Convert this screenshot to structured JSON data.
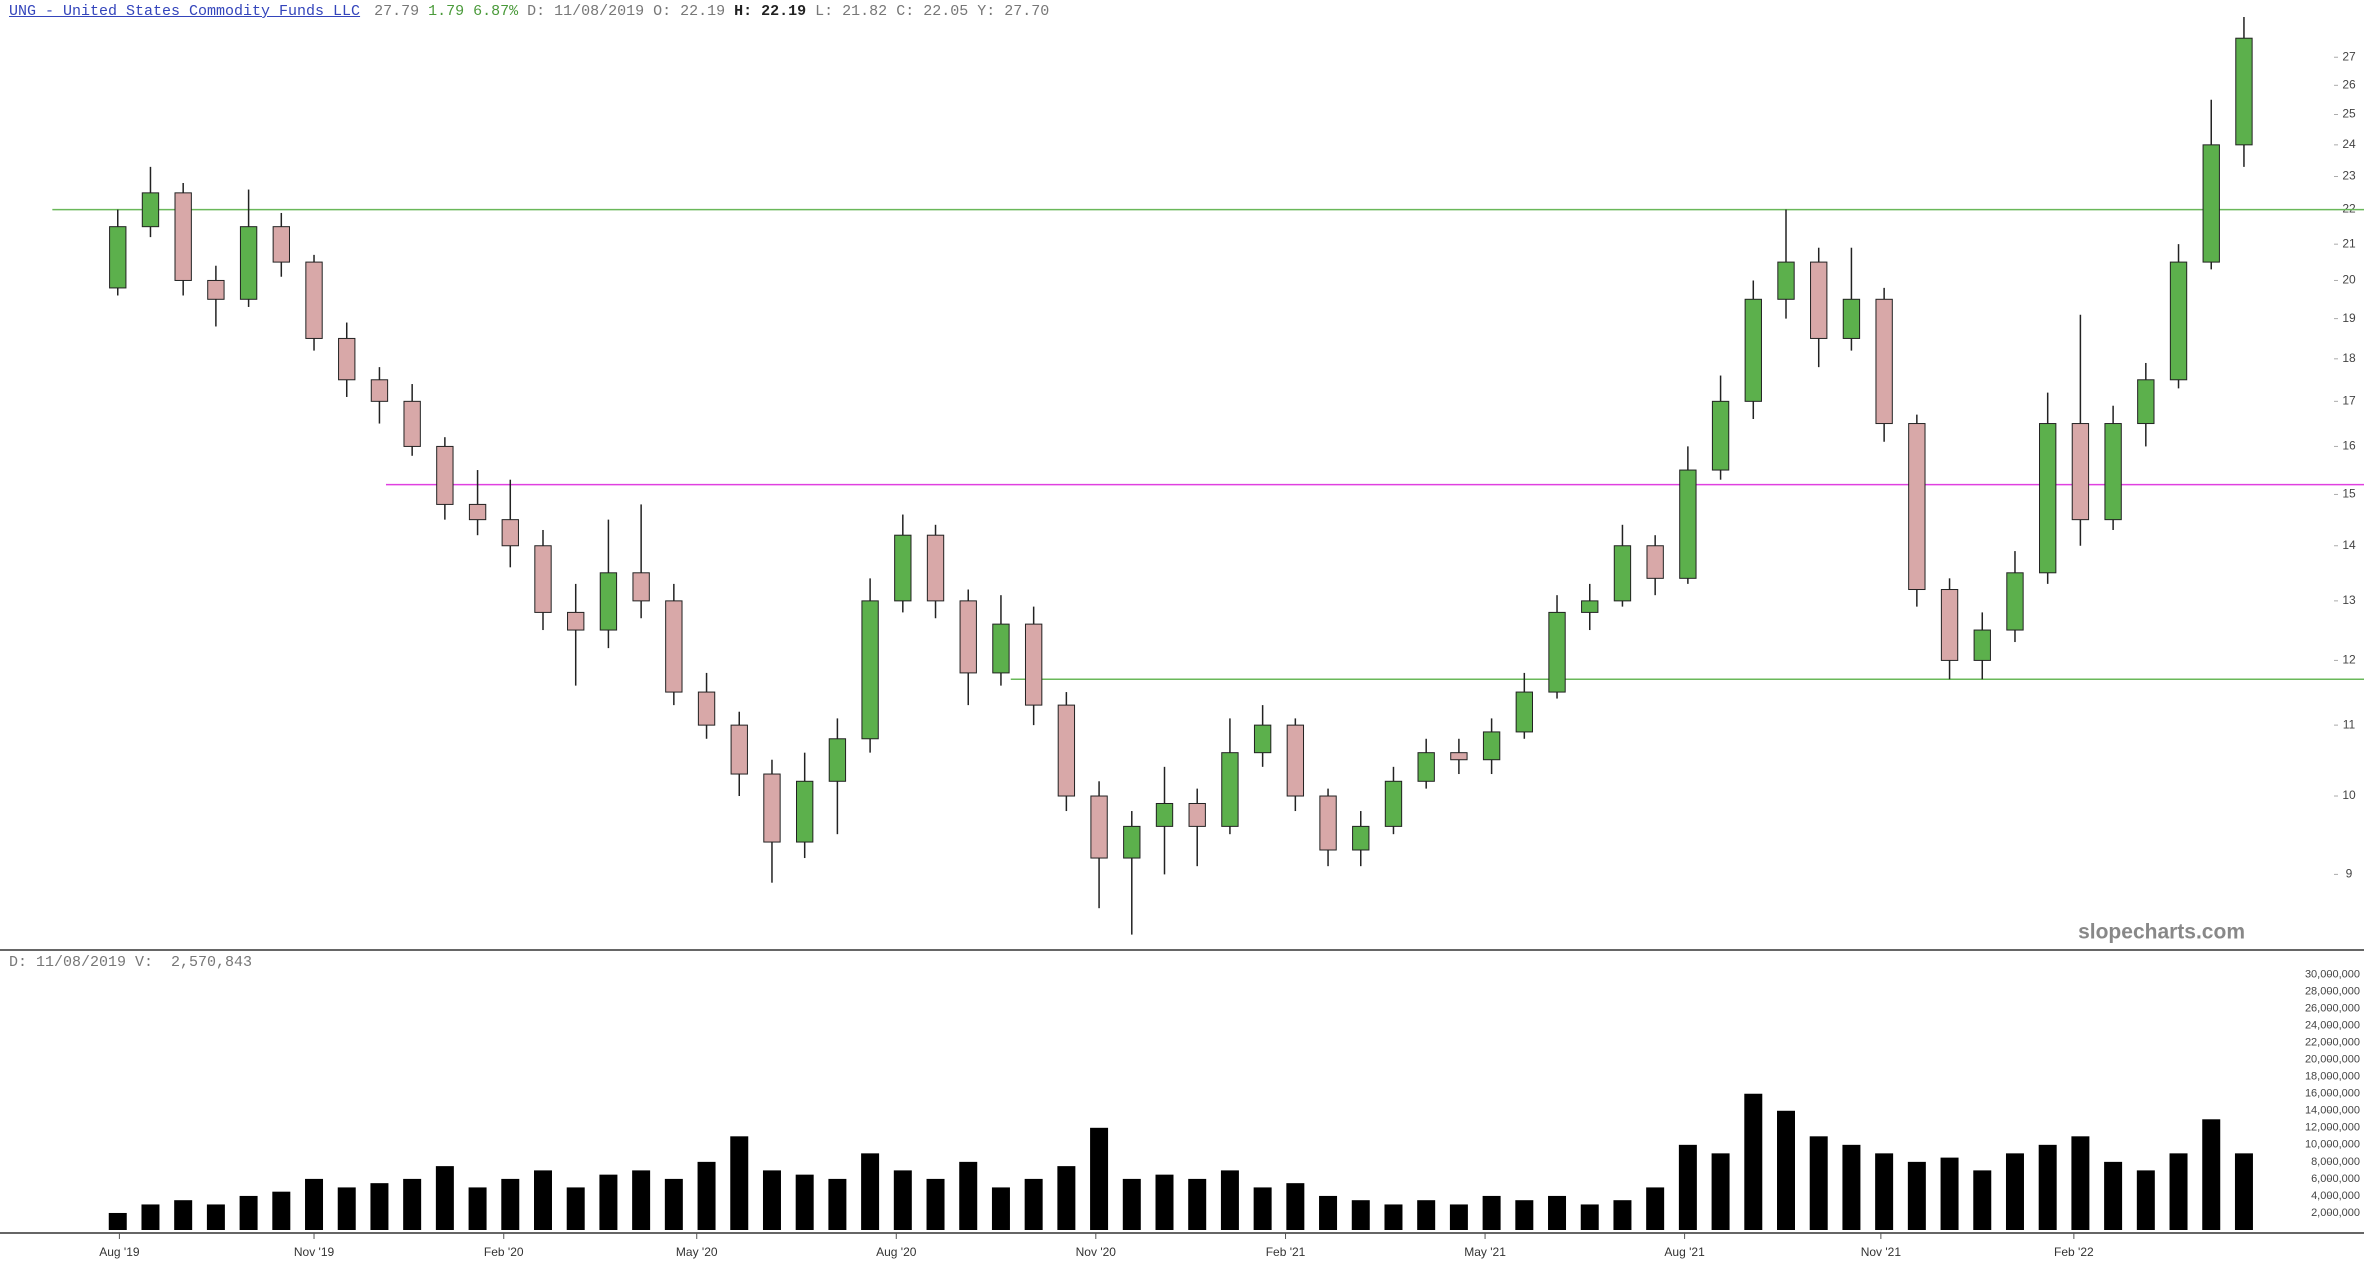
{
  "header": {
    "symbol_name": "UNG - United States Commodity Funds LLC",
    "last": "27.79",
    "change": "1.79",
    "change_pct": "6.87%",
    "date": "D: 11/08/2019",
    "open": "O: 22.19",
    "high": "H: 22.19",
    "low": "L: 21.82",
    "close": "C: 22.05",
    "y": "Y: 27.70"
  },
  "chart_data": [
    {
      "type": "candlestick",
      "log_scale": true,
      "up_color": "#5cb04c",
      "down_color": "#d8a8a8",
      "open": [
        19.8,
        21.5,
        22.5,
        20.0,
        19.5,
        21.5,
        20.5,
        18.5,
        17.5,
        17.0,
        16.0,
        14.8,
        14.5,
        14.0,
        12.8,
        12.5,
        13.5,
        13.0,
        11.5,
        11.0,
        10.3,
        9.4,
        10.2,
        10.8,
        13.0,
        14.2,
        13.0,
        11.8,
        12.6,
        11.3,
        10.0,
        9.2,
        9.6,
        9.9,
        9.6,
        10.6,
        11.0,
        10.0,
        9.3,
        9.6,
        10.2,
        10.6,
        10.5,
        10.9,
        11.5,
        12.8,
        13.0,
        14.0,
        13.4,
        15.5,
        17.0,
        19.5,
        20.5,
        18.5,
        19.5,
        16.5,
        13.2,
        12.0,
        12.5,
        13.5,
        16.5,
        14.5,
        16.5,
        17.5,
        20.5,
        24.0
      ],
      "high": [
        22.0,
        23.3,
        22.8,
        20.4,
        22.6,
        21.9,
        20.7,
        18.9,
        17.8,
        17.4,
        16.2,
        15.5,
        15.3,
        14.3,
        13.3,
        14.5,
        14.8,
        13.3,
        11.8,
        11.2,
        10.5,
        10.6,
        11.1,
        13.4,
        14.6,
        14.4,
        13.2,
        13.1,
        12.9,
        11.5,
        10.2,
        9.8,
        10.4,
        10.1,
        11.1,
        11.3,
        11.1,
        10.1,
        9.8,
        10.4,
        10.8,
        10.8,
        11.1,
        11.8,
        13.1,
        13.3,
        14.4,
        14.2,
        16.0,
        17.6,
        20.0,
        22.0,
        20.9,
        20.9,
        19.8,
        16.7,
        13.4,
        12.8,
        13.9,
        17.2,
        19.1,
        16.9,
        17.9,
        21.0,
        25.5,
        28.5
      ],
      "low": [
        19.6,
        21.2,
        19.6,
        18.8,
        19.3,
        20.1,
        18.2,
        17.1,
        16.5,
        15.8,
        14.5,
        14.2,
        13.6,
        12.5,
        11.6,
        12.2,
        12.7,
        11.3,
        10.8,
        10.0,
        8.9,
        9.2,
        9.5,
        10.6,
        12.8,
        12.7,
        11.3,
        11.6,
        11.0,
        9.8,
        8.6,
        8.3,
        9.0,
        9.1,
        9.5,
        10.4,
        9.8,
        9.1,
        9.1,
        9.5,
        10.1,
        10.3,
        10.3,
        10.8,
        11.4,
        12.5,
        12.9,
        13.1,
        13.3,
        15.3,
        16.6,
        19.0,
        17.8,
        18.2,
        16.1,
        12.9,
        11.7,
        11.7,
        12.3,
        13.3,
        14.0,
        14.3,
        16.0,
        17.3,
        20.3,
        23.3
      ],
      "close": [
        21.5,
        22.5,
        20.0,
        19.5,
        21.5,
        20.5,
        18.5,
        17.5,
        17.0,
        16.0,
        14.8,
        14.5,
        14.0,
        12.8,
        12.5,
        13.5,
        13.0,
        11.5,
        11.0,
        10.3,
        9.4,
        10.2,
        10.8,
        13.0,
        14.2,
        13.0,
        11.8,
        12.6,
        11.3,
        10.0,
        9.2,
        9.6,
        9.9,
        9.6,
        10.6,
        11.0,
        10.0,
        9.3,
        9.6,
        10.2,
        10.6,
        10.5,
        10.9,
        11.5,
        12.8,
        13.0,
        14.0,
        13.4,
        15.5,
        17.0,
        19.5,
        20.5,
        18.5,
        19.5,
        16.5,
        13.2,
        12.0,
        12.5,
        13.5,
        16.5,
        14.5,
        16.5,
        17.5,
        20.5,
        24.0,
        27.7
      ],
      "xlim": [
        -3.6,
        67.6
      ],
      "ylim": [
        8.13,
        29.16
      ],
      "yticks": [
        9,
        10,
        11,
        12,
        13,
        14,
        15,
        16,
        17,
        18,
        19,
        20,
        21,
        22,
        23,
        24,
        25,
        26,
        27
      ],
      "levels": [
        {
          "value": 22.0,
          "from": -2.0,
          "color": "#6ab85a"
        },
        {
          "value": 15.2,
          "from": 8.2,
          "color": "#e040e0"
        },
        {
          "value": 11.7,
          "from": 27.3,
          "color": "#6ab85a"
        }
      ],
      "watermark": "slopecharts.com"
    },
    {
      "type": "bar",
      "info": "D: 11/08/2019 V:  2,570,843",
      "color": "#000000",
      "values": [
        2000000,
        3000000,
        3500000,
        3000000,
        4000000,
        4500000,
        6000000,
        5000000,
        5500000,
        6000000,
        7500000,
        5000000,
        6000000,
        7000000,
        5000000,
        6500000,
        7000000,
        6000000,
        8000000,
        11000000,
        7000000,
        6500000,
        6000000,
        9000000,
        7000000,
        6000000,
        8000000,
        5000000,
        6000000,
        7500000,
        12000000,
        6000000,
        6500000,
        6000000,
        7000000,
        5000000,
        5500000,
        4000000,
        3500000,
        3000000,
        3500000,
        3000000,
        4000000,
        3500000,
        4000000,
        3000000,
        3500000,
        5000000,
        10000000,
        9000000,
        16000000,
        14000000,
        11000000,
        10000000,
        9000000,
        8000000,
        8500000,
        7000000,
        9000000,
        10000000,
        11000000,
        8000000,
        7000000,
        9000000,
        13000000,
        9000000
      ],
      "xlim": [
        -3.6,
        67.6
      ],
      "ylim": [
        0,
        31000000
      ],
      "yticks": [
        {
          "value": 2000000,
          "label": "2,000,000"
        },
        {
          "value": 4000000,
          "label": "4,000,000"
        },
        {
          "value": 6000000,
          "label": "6,000,000"
        },
        {
          "value": 8000000,
          "label": "8,000,000"
        },
        {
          "value": 10000000,
          "label": "10,000,000"
        },
        {
          "value": 12000000,
          "label": "12,000,000"
        },
        {
          "value": 14000000,
          "label": "14,000,000"
        },
        {
          "value": 16000000,
          "label": "16,000,000"
        },
        {
          "value": 18000000,
          "label": "18,000,000"
        },
        {
          "value": 20000000,
          "label": "20,000,000"
        },
        {
          "value": 22000000,
          "label": "22,000,000"
        },
        {
          "value": 24000000,
          "label": "24,000,000"
        },
        {
          "value": 26000000,
          "label": "26,000,000"
        },
        {
          "value": 28000000,
          "label": "28,000,000"
        },
        {
          "value": 30000000,
          "label": "30,000,000"
        }
      ],
      "xticks": [
        {
          "value": 0.05,
          "label": "Aug '19"
        },
        {
          "value": 6.0,
          "label": "Nov '19"
        },
        {
          "value": 11.8,
          "label": "Feb '20"
        },
        {
          "value": 17.7,
          "label": "May '20"
        },
        {
          "value": 23.8,
          "label": "Aug '20"
        },
        {
          "value": 29.9,
          "label": "Nov '20"
        },
        {
          "value": 35.7,
          "label": "Feb '21"
        },
        {
          "value": 41.8,
          "label": "May '21"
        },
        {
          "value": 47.9,
          "label": "Aug '21"
        },
        {
          "value": 53.9,
          "label": "Nov '21"
        },
        {
          "value": 59.8,
          "label": "Feb '22"
        }
      ]
    }
  ]
}
